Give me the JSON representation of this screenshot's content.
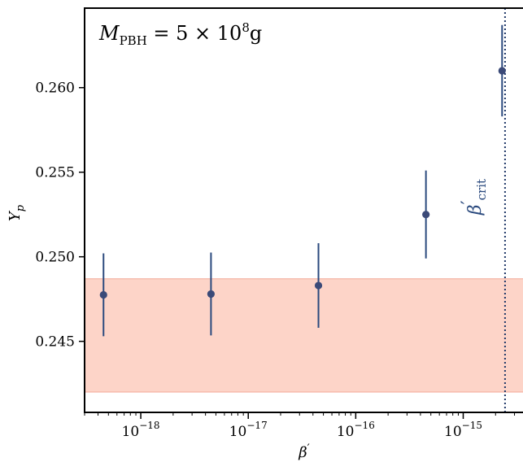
{
  "chart_data": {
    "type": "scatter",
    "xscale": "log",
    "xlim": [
      3e-19,
      3.6e-15
    ],
    "ylim": [
      0.2408,
      0.2647
    ],
    "xlabel_main": "β",
    "xlabel_prime": "′",
    "ylabel_main": "Y",
    "ylabel_sub": "p",
    "yticks": [
      {
        "value": 0.245,
        "label": "0.245"
      },
      {
        "value": 0.25,
        "label": "0.250"
      },
      {
        "value": 0.255,
        "label": "0.255"
      },
      {
        "value": 0.26,
        "label": "0.260"
      }
    ],
    "xticks": [
      {
        "value": 1e-18,
        "base": "10",
        "exp": "−18"
      },
      {
        "value": 1e-17,
        "base": "10",
        "exp": "−17"
      },
      {
        "value": 1e-16,
        "base": "10",
        "exp": "−16"
      },
      {
        "value": 1e-15,
        "base": "10",
        "exp": "−15"
      }
    ],
    "points": [
      {
        "x": 4.5e-19,
        "y": 0.24775,
        "err": 0.00245
      },
      {
        "x": 4.5e-18,
        "y": 0.2478,
        "err": 0.00245
      },
      {
        "x": 4.5e-17,
        "y": 0.2483,
        "err": 0.0025
      },
      {
        "x": 4.5e-16,
        "y": 0.2525,
        "err": 0.0026
      },
      {
        "x": 2.3e-15,
        "y": 0.261,
        "err": 0.0027
      }
    ],
    "band": {
      "ymin": 0.242,
      "ymax": 0.2487,
      "color": "#fdd4c8",
      "edge": "#f4aa98"
    },
    "marker_color": "#3b4a78",
    "errorbar_color": "#2b4a7e",
    "critical_line": {
      "x": 2.45e-15,
      "label_main": "β",
      "label_prime": "′",
      "label_sub": "crit",
      "color": "#1f3868"
    },
    "annotation": {
      "main": "M",
      "sub": "PBH",
      "eq": " = 5 × 10",
      "exp": "8",
      "unit": "g"
    },
    "grid": false,
    "legend": "none"
  }
}
